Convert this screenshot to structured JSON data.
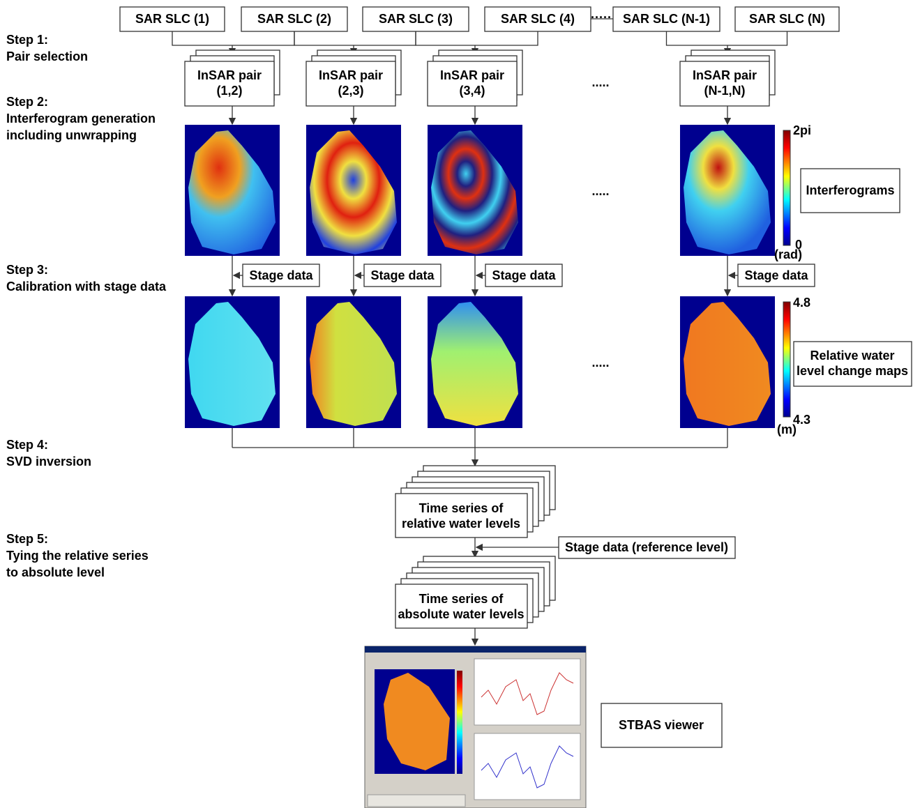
{
  "slc_boxes": [
    "SAR SLC (1)",
    "SAR SLC (2)",
    "SAR SLC (3)",
    "SAR SLC (4)",
    "SAR SLC (N-1)",
    "SAR SLC (N)"
  ],
  "slc_ellipsis": "·····",
  "steps": [
    {
      "title": "Step 1:",
      "lines": [
        "Pair selection"
      ]
    },
    {
      "title": "Step 2:",
      "lines": [
        "Interferogram generation",
        "including unwrapping"
      ]
    },
    {
      "title": "Step 3:",
      "lines": [
        "Calibration with stage data"
      ]
    },
    {
      "title": "Step 4:",
      "lines": [
        "SVD inversion"
      ]
    },
    {
      "title": "Step 5:",
      "lines": [
        "Tying the relative series",
        "to absolute level"
      ]
    }
  ],
  "insar_pairs": [
    {
      "label": "InSAR pair",
      "index": "(1,2)"
    },
    {
      "label": "InSAR pair",
      "index": "(2,3)"
    },
    {
      "label": "InSAR pair",
      "index": "(3,4)"
    },
    {
      "label": "InSAR pair",
      "index": "(N-1,N)"
    }
  ],
  "pair_ellipsis": ".....",
  "interferogram_colorbar": {
    "max": "2pi",
    "min": 0,
    "unit": "(rad)"
  },
  "interferograms_label": "Interferograms",
  "interferogram_ellipsis": ".....",
  "stage_data": [
    "Stage data",
    "Stage data",
    "Stage data",
    "Stage data"
  ],
  "water_colorbar": {
    "max": 4.8,
    "min": 4.3,
    "unit": "(m)"
  },
  "water_maps_label": [
    "Relative water",
    "level change maps"
  ],
  "water_maps_ellipsis": ".....",
  "time_series_relative": [
    "Time series of",
    "relative water levels"
  ],
  "stage_reference": "Stage data (reference level)",
  "time_series_absolute": [
    "Time series of",
    "absolute water levels"
  ],
  "viewer_label": "STBAS viewer"
}
